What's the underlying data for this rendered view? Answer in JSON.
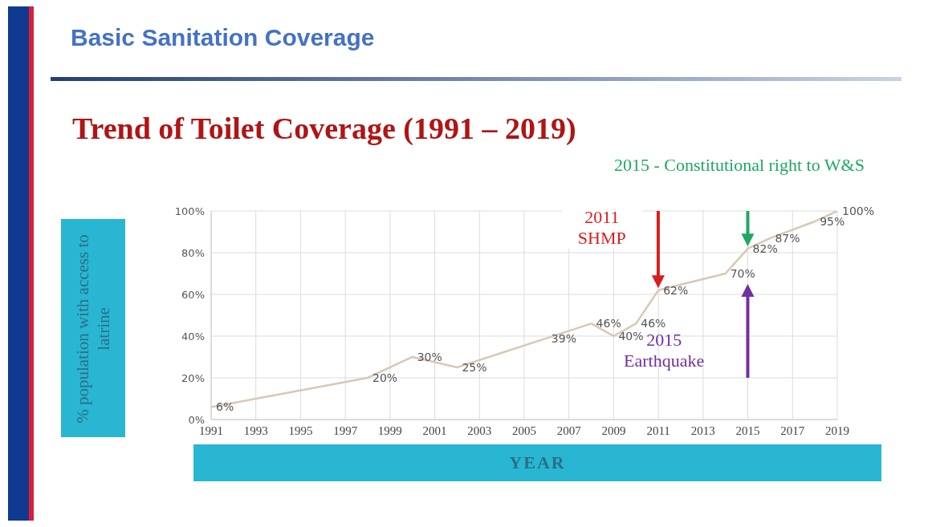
{
  "chart_data": {
    "type": "line",
    "title": "Basic Sanitation Coverage",
    "subtitle": "Trend of Toilet Coverage (1991 – 2019)",
    "xlabel": "YEAR",
    "ylabel": "% population with access to latrine",
    "x": [
      1991,
      1998,
      2000,
      2002,
      2006,
      2008,
      2009,
      2010,
      2011,
      2014,
      2015,
      2016,
      2018,
      2019
    ],
    "series": [
      {
        "color": "#d8c8b4",
        "values": [
          6,
          20,
          30,
          25,
          39,
          46,
          40,
          46,
          62,
          70,
          82,
          87,
          95,
          100
        ],
        "value_labels": [
          "6%",
          "20%",
          "30%",
          "25%",
          "39%",
          "46%",
          "40%",
          "46%",
          "62%",
          "70%",
          "82%",
          "87%",
          "95%",
          "100%"
        ]
      }
    ],
    "xlim": [
      1991,
      2019
    ],
    "xticks": [
      1991,
      1993,
      1995,
      1997,
      1999,
      2001,
      2003,
      2005,
      2007,
      2009,
      2011,
      2013,
      2015,
      2017,
      2019
    ],
    "ylim": [
      0,
      100
    ],
    "yticks": [
      {
        "value": 0,
        "label": "0%"
      },
      {
        "value": 20,
        "label": "20%"
      },
      {
        "value": 40,
        "label": "40%"
      },
      {
        "value": 60,
        "label": "60%"
      },
      {
        "value": 80,
        "label": "80%"
      },
      {
        "value": 100,
        "label": "100%"
      }
    ],
    "grid": true,
    "annotations": [
      "2011 SHMP",
      "2015 - Constitutional right to W&S",
      "2015 Earthquake"
    ]
  }
}
